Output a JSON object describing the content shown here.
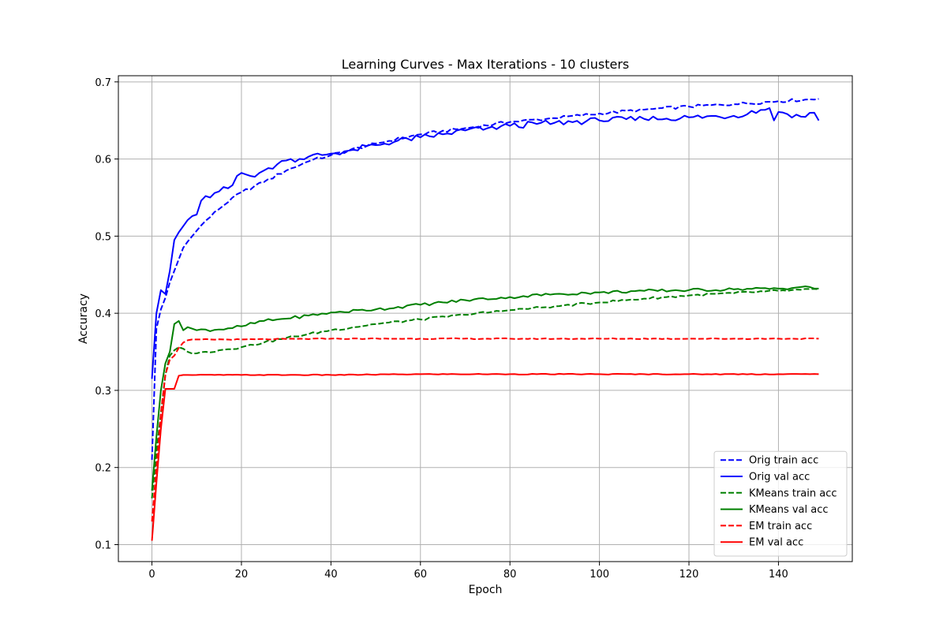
{
  "chart_data": {
    "type": "line",
    "title": "Learning Curves - Max Iterations - 10 clusters",
    "xlabel": "Epoch",
    "ylabel": "Accuracy",
    "xlim": [
      -7.5,
      156.5
    ],
    "ylim": [
      0.078,
      0.708
    ],
    "xticks": [
      0,
      20,
      40,
      60,
      80,
      100,
      120,
      140
    ],
    "yticks": [
      0.1,
      0.2,
      0.3,
      0.4,
      0.5,
      0.6,
      0.7
    ],
    "grid": true,
    "legend_position": "bottom-right",
    "epochs": {
      "start": 0,
      "end": 149
    },
    "series": [
      {
        "name": "Orig train acc",
        "color": "#0000ff",
        "style": "dashed",
        "keypoints": [
          [
            0,
            0.21
          ],
          [
            1,
            0.38
          ],
          [
            2,
            0.405
          ],
          [
            3,
            0.42
          ],
          [
            4,
            0.44
          ],
          [
            5,
            0.455
          ],
          [
            6,
            0.47
          ],
          [
            7,
            0.485
          ],
          [
            8,
            0.493
          ],
          [
            9,
            0.5
          ],
          [
            10,
            0.507
          ],
          [
            12,
            0.52
          ],
          [
            15,
            0.535
          ],
          [
            18,
            0.55
          ],
          [
            20,
            0.557
          ],
          [
            25,
            0.57
          ],
          [
            30,
            0.585
          ],
          [
            35,
            0.597
          ],
          [
            40,
            0.605
          ],
          [
            50,
            0.62
          ],
          [
            60,
            0.632
          ],
          [
            70,
            0.64
          ],
          [
            80,
            0.648
          ],
          [
            90,
            0.653
          ],
          [
            100,
            0.659
          ],
          [
            110,
            0.664
          ],
          [
            120,
            0.668
          ],
          [
            130,
            0.671
          ],
          [
            140,
            0.675
          ],
          [
            149,
            0.678
          ]
        ],
        "noise": 0.002
      },
      {
        "name": "Orig val acc",
        "color": "#0000ff",
        "style": "solid",
        "keypoints": [
          [
            0,
            0.315
          ],
          [
            1,
            0.4
          ],
          [
            2,
            0.43
          ],
          [
            3,
            0.425
          ],
          [
            4,
            0.455
          ],
          [
            5,
            0.495
          ],
          [
            6,
            0.505
          ],
          [
            7,
            0.513
          ],
          [
            8,
            0.521
          ],
          [
            9,
            0.526
          ],
          [
            10,
            0.528
          ],
          [
            11,
            0.546
          ],
          [
            12,
            0.552
          ],
          [
            13,
            0.55
          ],
          [
            15,
            0.558
          ],
          [
            17,
            0.562
          ],
          [
            18,
            0.566
          ],
          [
            19,
            0.578
          ],
          [
            20,
            0.582
          ],
          [
            22,
            0.578
          ],
          [
            25,
            0.585
          ],
          [
            30,
            0.598
          ],
          [
            35,
            0.603
          ],
          [
            40,
            0.607
          ],
          [
            45,
            0.612
          ],
          [
            50,
            0.618
          ],
          [
            55,
            0.624
          ],
          [
            60,
            0.628
          ],
          [
            65,
            0.632
          ],
          [
            70,
            0.637
          ],
          [
            75,
            0.64
          ],
          [
            80,
            0.643
          ],
          [
            90,
            0.647
          ],
          [
            100,
            0.65
          ],
          [
            110,
            0.652
          ],
          [
            120,
            0.654
          ],
          [
            130,
            0.656
          ],
          [
            138,
            0.666
          ],
          [
            139,
            0.65
          ],
          [
            140,
            0.661
          ],
          [
            145,
            0.655
          ],
          [
            148,
            0.66
          ],
          [
            149,
            0.65
          ]
        ],
        "noise": 0.004
      },
      {
        "name": "KMeans train acc",
        "color": "#008000",
        "style": "dashed",
        "keypoints": [
          [
            0,
            0.16
          ],
          [
            1,
            0.22
          ],
          [
            2,
            0.27
          ],
          [
            3,
            0.32
          ],
          [
            4,
            0.345
          ],
          [
            5,
            0.352
          ],
          [
            6,
            0.356
          ],
          [
            7,
            0.354
          ],
          [
            8,
            0.35
          ],
          [
            10,
            0.348
          ],
          [
            15,
            0.352
          ],
          [
            20,
            0.356
          ],
          [
            25,
            0.362
          ],
          [
            30,
            0.368
          ],
          [
            35,
            0.373
          ],
          [
            40,
            0.378
          ],
          [
            45,
            0.382
          ],
          [
            50,
            0.386
          ],
          [
            60,
            0.392
          ],
          [
            70,
            0.398
          ],
          [
            80,
            0.404
          ],
          [
            90,
            0.409
          ],
          [
            100,
            0.414
          ],
          [
            110,
            0.419
          ],
          [
            120,
            0.423
          ],
          [
            130,
            0.426
          ],
          [
            140,
            0.429
          ],
          [
            149,
            0.431
          ]
        ],
        "noise": 0.0015
      },
      {
        "name": "KMeans val acc",
        "color": "#008000",
        "style": "solid",
        "keypoints": [
          [
            0,
            0.17
          ],
          [
            1,
            0.24
          ],
          [
            2,
            0.3
          ],
          [
            3,
            0.335
          ],
          [
            4,
            0.35
          ],
          [
            5,
            0.386
          ],
          [
            6,
            0.39
          ],
          [
            7,
            0.378
          ],
          [
            8,
            0.382
          ],
          [
            10,
            0.378
          ],
          [
            15,
            0.379
          ],
          [
            20,
            0.383
          ],
          [
            25,
            0.39
          ],
          [
            30,
            0.393
          ],
          [
            35,
            0.397
          ],
          [
            40,
            0.401
          ],
          [
            50,
            0.405
          ],
          [
            60,
            0.411
          ],
          [
            70,
            0.417
          ],
          [
            80,
            0.421
          ],
          [
            90,
            0.425
          ],
          [
            100,
            0.427
          ],
          [
            110,
            0.429
          ],
          [
            120,
            0.43
          ],
          [
            130,
            0.431
          ],
          [
            140,
            0.432
          ],
          [
            145,
            0.434
          ],
          [
            149,
            0.432
          ]
        ],
        "noise": 0.002
      },
      {
        "name": "EM train acc",
        "color": "#ff0000",
        "style": "dashed",
        "keypoints": [
          [
            0,
            0.13
          ],
          [
            1,
            0.2
          ],
          [
            2,
            0.27
          ],
          [
            3,
            0.32
          ],
          [
            4,
            0.34
          ],
          [
            5,
            0.345
          ],
          [
            6,
            0.355
          ],
          [
            7,
            0.362
          ],
          [
            8,
            0.365
          ],
          [
            10,
            0.366
          ],
          [
            20,
            0.366
          ],
          [
            40,
            0.367
          ],
          [
            60,
            0.367
          ],
          [
            80,
            0.367
          ],
          [
            100,
            0.367
          ],
          [
            120,
            0.367
          ],
          [
            140,
            0.367
          ],
          [
            149,
            0.367
          ]
        ],
        "noise": 0.0006
      },
      {
        "name": "EM val acc",
        "color": "#ff0000",
        "style": "solid",
        "keypoints": [
          [
            0,
            0.105
          ],
          [
            1,
            0.18
          ],
          [
            2,
            0.25
          ],
          [
            3,
            0.302
          ],
          [
            4,
            0.302
          ],
          [
            5,
            0.302
          ],
          [
            6,
            0.319
          ],
          [
            7,
            0.32
          ],
          [
            8,
            0.32
          ],
          [
            10,
            0.32
          ],
          [
            20,
            0.32
          ],
          [
            40,
            0.32
          ],
          [
            60,
            0.321
          ],
          [
            80,
            0.321
          ],
          [
            100,
            0.321
          ],
          [
            120,
            0.321
          ],
          [
            140,
            0.321
          ],
          [
            149,
            0.321
          ]
        ],
        "noise": 0.0005
      }
    ]
  }
}
